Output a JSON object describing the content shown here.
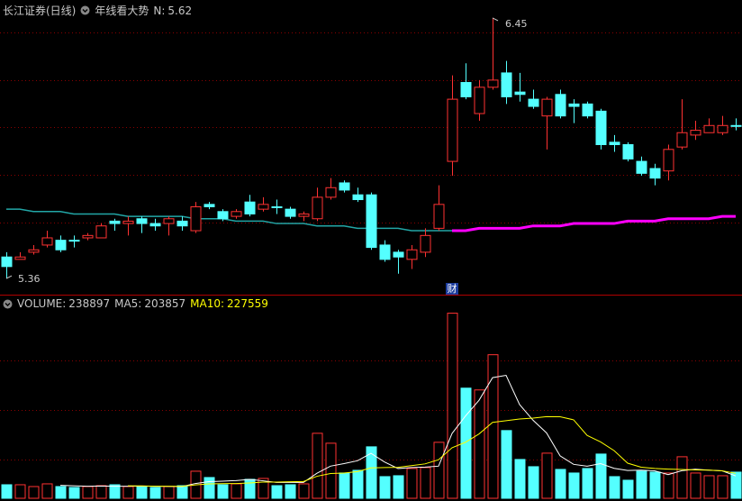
{
  "chart_data": [
    {
      "type": "candlestick",
      "title": "长江证券(日线)",
      "indicator": "年线看大势",
      "indicator_param": "N:",
      "indicator_value": 5.62,
      "ylim": [
        5.3,
        6.525
      ],
      "up_color": "#ff3232",
      "down_color": "#54ffff",
      "open": [
        5.45,
        5.44,
        5.47,
        5.5,
        5.52,
        5.52,
        5.53,
        5.53,
        5.6,
        5.59,
        5.61,
        5.59,
        5.59,
        5.6,
        5.56,
        5.67,
        5.64,
        5.62,
        5.68,
        5.65,
        5.66,
        5.65,
        5.62,
        5.61,
        5.7,
        5.76,
        5.71,
        5.71,
        5.5,
        5.47,
        5.44,
        5.47,
        5.57,
        5.85,
        6.18,
        6.05,
        6.16,
        6.22,
        6.14,
        6.11,
        6.04,
        6.13,
        6.09,
        6.09,
        6.06,
        5.93,
        5.92,
        5.85,
        5.82,
        5.81,
        5.91,
        5.96,
        5.97,
        5.97,
        6.0
      ],
      "high": [
        5.47,
        5.47,
        5.5,
        5.56,
        5.54,
        5.54,
        5.55,
        5.59,
        5.61,
        5.62,
        5.62,
        5.61,
        5.62,
        5.62,
        5.68,
        5.68,
        5.65,
        5.65,
        5.71,
        5.7,
        5.69,
        5.66,
        5.64,
        5.74,
        5.78,
        5.77,
        5.74,
        5.72,
        5.52,
        5.48,
        5.5,
        5.57,
        5.75,
        6.21,
        6.26,
        6.19,
        6.45,
        6.27,
        6.22,
        6.15,
        6.12,
        6.15,
        6.11,
        6.1,
        6.07,
        5.96,
        5.93,
        5.87,
        5.84,
        5.92,
        6.11,
        6.02,
        6.03,
        6.04,
        6.03
      ],
      "low": [
        5.36,
        5.44,
        5.46,
        5.49,
        5.47,
        5.49,
        5.52,
        5.53,
        5.56,
        5.54,
        5.55,
        5.56,
        5.54,
        5.56,
        5.55,
        5.65,
        5.6,
        5.61,
        5.62,
        5.64,
        5.63,
        5.61,
        5.6,
        5.6,
        5.69,
        5.72,
        5.68,
        5.48,
        5.43,
        5.38,
        5.4,
        5.45,
        5.56,
        5.79,
        6.11,
        6.02,
        6.15,
        6.09,
        6.1,
        6.07,
        5.9,
        6.03,
        6.01,
        6.03,
        5.9,
        5.89,
        5.85,
        5.79,
        5.75,
        5.77,
        5.9,
        5.94,
        5.97,
        5.96,
        5.98
      ],
      "close": [
        5.41,
        5.45,
        5.48,
        5.53,
        5.48,
        5.52,
        5.54,
        5.58,
        5.59,
        5.6,
        5.59,
        5.58,
        5.61,
        5.58,
        5.66,
        5.66,
        5.61,
        5.64,
        5.63,
        5.67,
        5.66,
        5.62,
        5.63,
        5.7,
        5.74,
        5.73,
        5.69,
        5.49,
        5.44,
        5.45,
        5.48,
        5.54,
        5.67,
        6.11,
        6.12,
        6.16,
        6.19,
        6.12,
        6.13,
        6.08,
        6.11,
        6.04,
        6.08,
        6.04,
        5.92,
        5.92,
        5.86,
        5.8,
        5.78,
        5.9,
        5.97,
        5.98,
        6.0,
        6.0,
        6.0
      ],
      "markers": [
        null,
        null,
        null,
        null,
        null,
        null,
        null,
        null,
        null,
        null,
        null,
        null,
        null,
        null,
        null,
        null,
        null,
        null,
        null,
        null,
        null,
        null,
        null,
        null,
        null,
        null,
        null,
        null,
        null,
        null,
        null,
        null,
        null,
        "财",
        null,
        null,
        null,
        null,
        null,
        null,
        null,
        null,
        null,
        null,
        null,
        null,
        null,
        null,
        null,
        null,
        null,
        null,
        null,
        null,
        null
      ],
      "series": [
        {
          "color": "#22a6a6",
          "values": [
            5.65,
            5.65,
            5.64,
            5.64,
            5.64,
            5.63,
            5.63,
            5.63,
            5.63,
            5.62,
            5.62,
            5.62,
            5.62,
            5.62,
            5.61,
            5.61,
            5.61,
            5.6,
            5.6,
            5.6,
            5.59,
            5.59,
            5.59,
            5.58,
            5.58,
            5.58,
            5.57,
            5.57,
            5.57,
            5.57,
            5.56,
            5.56,
            5.56,
            5.56,
            null,
            null,
            null,
            null,
            null,
            null,
            null,
            null,
            null,
            null,
            null,
            null,
            null,
            null,
            null,
            null,
            null,
            null,
            null,
            null,
            null
          ]
        },
        {
          "color": "#ff00ff",
          "values": [
            null,
            null,
            null,
            null,
            null,
            null,
            null,
            null,
            null,
            null,
            null,
            null,
            null,
            null,
            null,
            null,
            null,
            null,
            null,
            null,
            null,
            null,
            null,
            null,
            null,
            null,
            null,
            null,
            null,
            null,
            null,
            null,
            null,
            5.56,
            5.56,
            5.57,
            5.57,
            5.57,
            5.57,
            5.58,
            5.58,
            5.58,
            5.59,
            5.59,
            5.59,
            5.59,
            5.6,
            5.6,
            5.6,
            5.61,
            5.61,
            5.61,
            5.61,
            5.62,
            5.62
          ]
        }
      ]
    },
    {
      "type": "bar",
      "ylim": [
        0,
        1710000
      ],
      "series": [
        {
          "name": "VOLUME:",
          "color": "#c8c8c8",
          "values": [
            123600,
            123600,
            107100,
            131800,
            107100,
            98900,
            107100,
            115300,
            123600,
            107100,
            107100,
            98900,
            107100,
            115300,
            247100,
            189500,
            123600,
            131800,
            173000,
            181200,
            115300,
            123600,
            131800,
            593100,
            502500,
            230700,
            255400,
            469600,
            197700,
            206000,
            271900,
            280100,
            510800,
            1688800,
            1005000,
            988600,
            1309900,
            617900,
            354200,
            288300,
            411900,
            263600,
            230700,
            271900,
            403700,
            197700,
            164800,
            247100,
            238900,
            230700,
            379000,
            230700,
            206000,
            206000,
            238897
          ]
        },
        {
          "name": "MA5:",
          "color": "#ffffff",
          "values": [
            null,
            null,
            null,
            null,
            118600,
            113700,
            110400,
            112000,
            110400,
            110400,
            112000,
            110400,
            108700,
            107100,
            135100,
            151600,
            156500,
            161500,
            173000,
            159800,
            145000,
            145000,
            145000,
            229000,
            293300,
            316300,
            342700,
            410300,
            331200,
            271900,
            280100,
            285000,
            293300,
            591500,
            751300,
            894700,
            1100600,
            1122000,
            855100,
            711800,
            596400,
            387200,
            309700,
            293300,
            316300,
            273500,
            253700,
            257000,
            250400,
            215800,
            252100,
            265300,
            257000,
            250400,
            203857
          ]
        },
        {
          "name": "MA10:",
          "color": "#ffff00",
          "values": [
            null,
            null,
            null,
            null,
            null,
            null,
            null,
            null,
            null,
            114500,
            112900,
            110400,
            110400,
            108700,
            122700,
            131800,
            133500,
            135100,
            140000,
            147500,
            148300,
            150800,
            153200,
            201000,
            226500,
            230700,
            243800,
            277600,
            280100,
            282600,
            298200,
            313900,
            351800,
            461300,
            511600,
            587400,
            692800,
            707600,
            723300,
            731500,
            745500,
            743900,
            715900,
            574200,
            514000,
            435000,
            320500,
            283400,
            271900,
            266100,
            262800,
            259500,
            257000,
            250400,
            227559
          ]
        }
      ]
    }
  ]
}
